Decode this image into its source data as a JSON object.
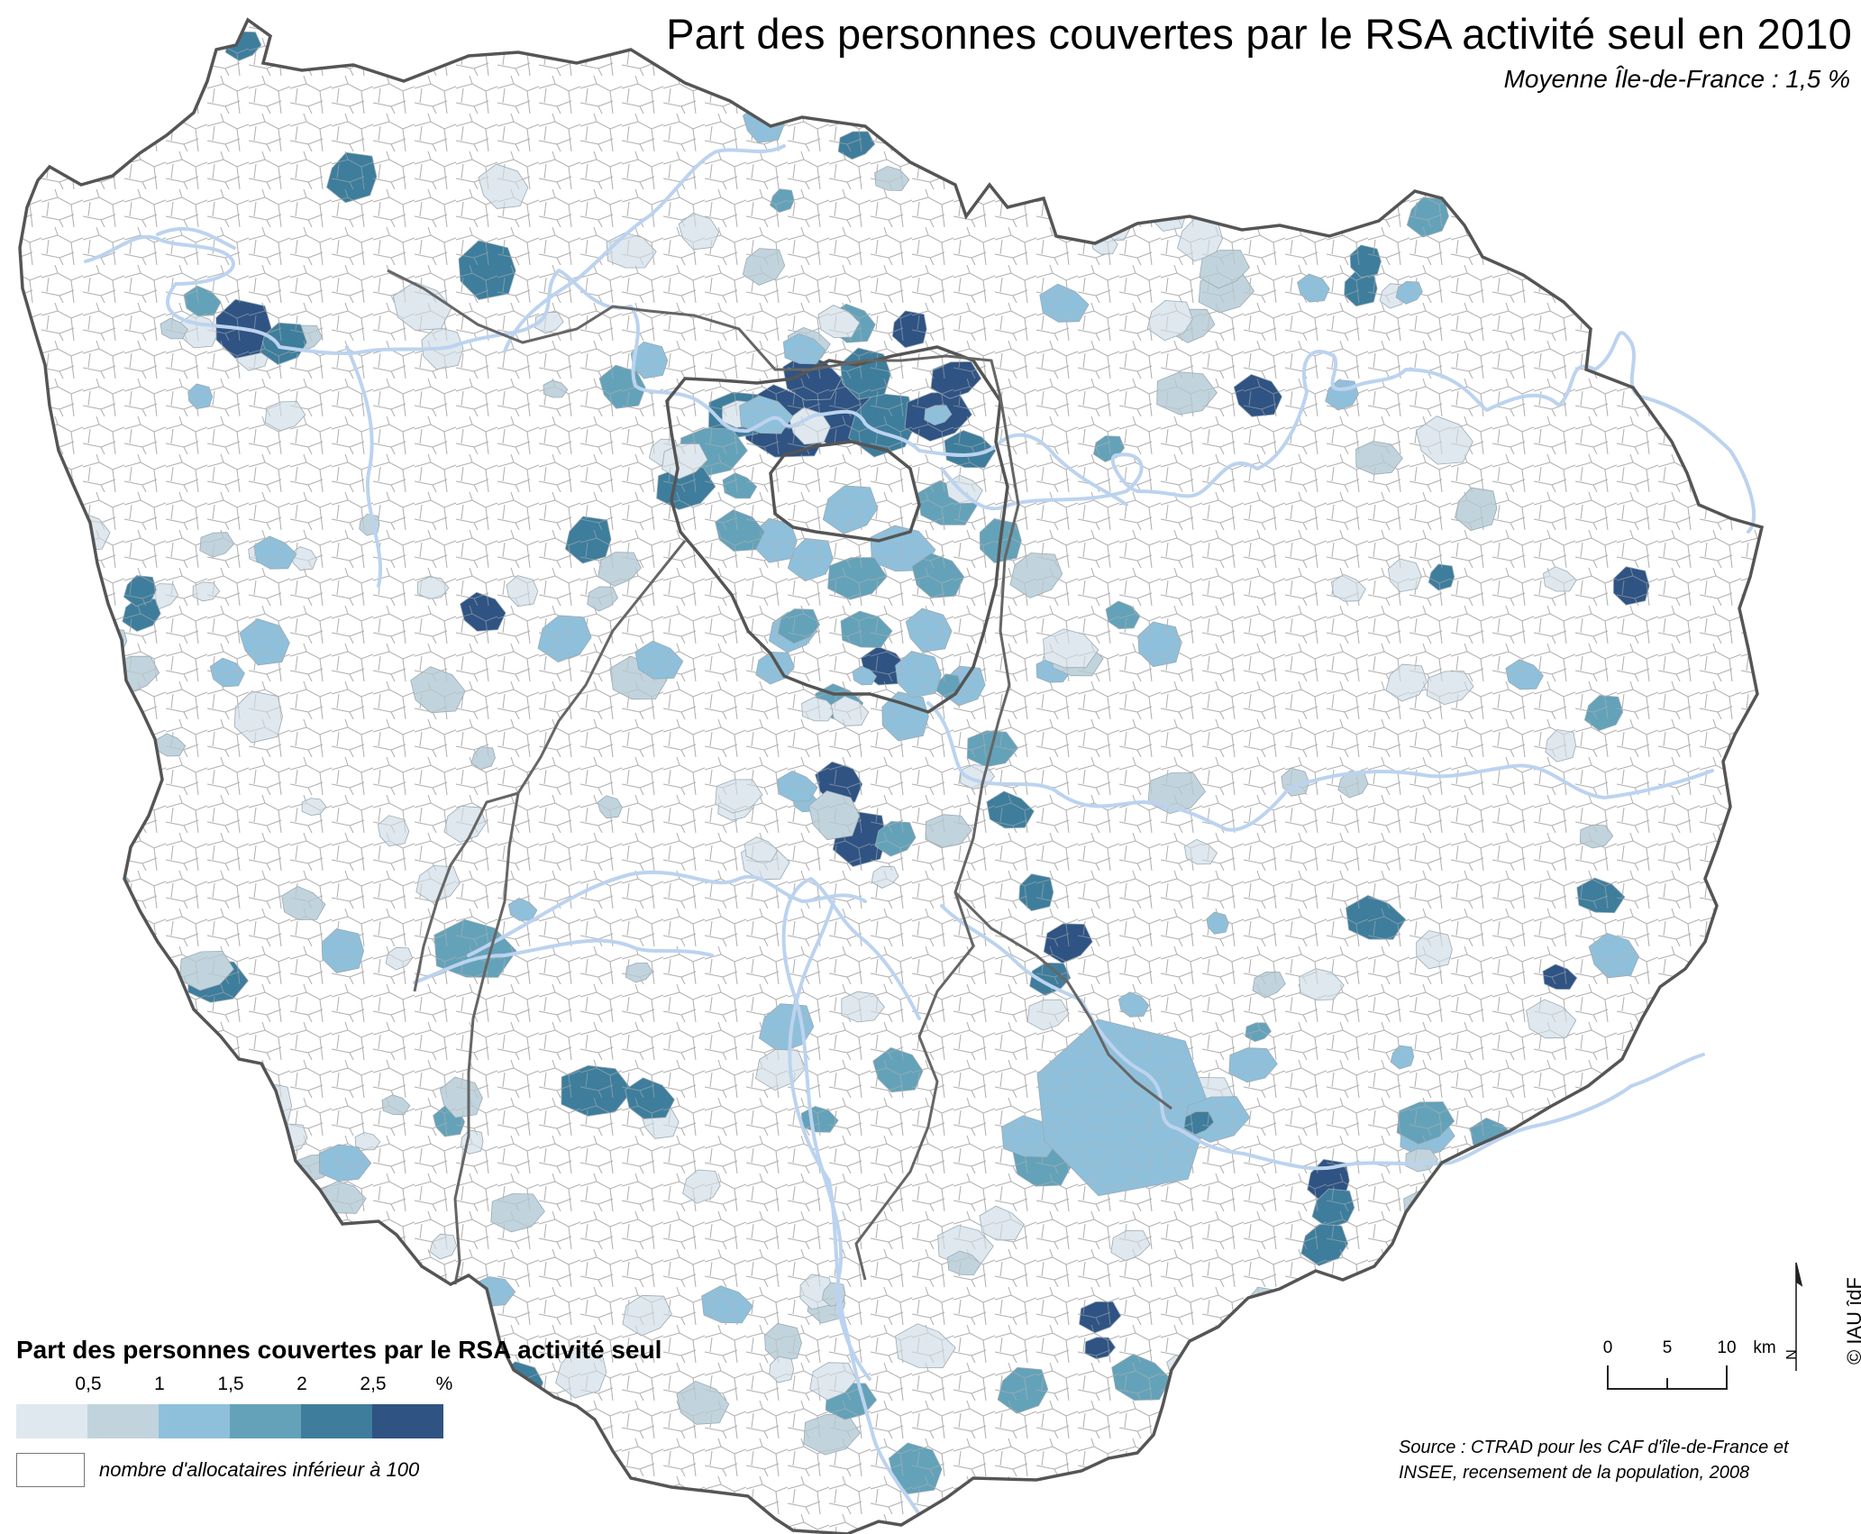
{
  "map": {
    "title": "Part des personnes couvertes par le RSA activité seul en 2010",
    "subtitle": "Moyenne Île-de-France : 1,5 %",
    "region": "Île-de-France"
  },
  "legend": {
    "title": "Part des personnes couvertes par le RSA activité seul",
    "tick_labels": [
      "0,5",
      "1",
      "1,5",
      "2",
      "2,5",
      "%"
    ],
    "classes": [
      {
        "range": "< 0,5",
        "color": "#dfe8ef"
      },
      {
        "range": "0,5 – 1",
        "color": "#c1d4dd"
      },
      {
        "range": "1 – 1,5",
        "color": "#8ec0dc"
      },
      {
        "range": "1,5 – 2",
        "color": "#64a2b9"
      },
      {
        "range": "2 – 2,5",
        "color": "#3e7d9c"
      },
      {
        "range": "> 2,5",
        "color": "#2f5383"
      }
    ],
    "no_data_color": "#ffffff",
    "no_data_label": "nombre d'allocataires inférieur à 100"
  },
  "scale": {
    "labels": [
      "0",
      "5",
      "10"
    ],
    "unit": "km"
  },
  "north_label": "N",
  "credit": "© IAU îdF",
  "source": {
    "line1": "Source : CTRAD pour les CAF d'île-de-France et",
    "line2": "INSEE, recensement de la population, 2008"
  },
  "colors": {
    "river": "#bcd3ef",
    "department_border": "#555555",
    "commune_border": "#aaaaaa"
  }
}
